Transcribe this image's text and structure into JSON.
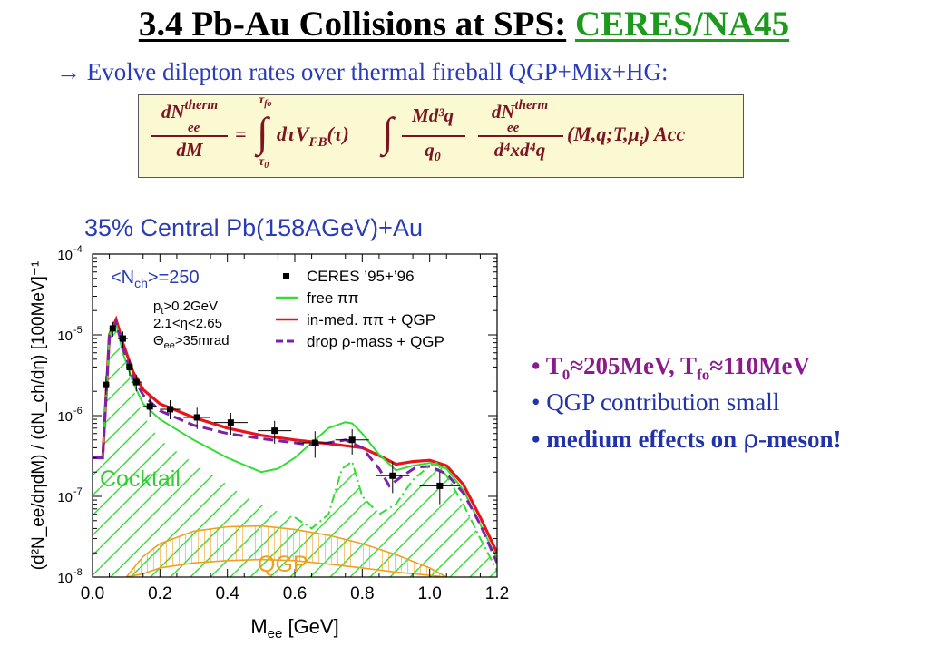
{
  "slide": {
    "title_prefix": "3.4  Pb-Au Collisions at SPS:",
    "title_accent": "CERES/NA45",
    "subtitle": "→ Evolve dilepton rates over thermal fireball QGP+Mix+HG:",
    "colors": {
      "title_accent": "#1d9a1d",
      "subtitle": "#2a3bb7",
      "equation": "#7c1420",
      "equation_bg": "#fbf9d2",
      "bullet_purple": "#8b1a8b",
      "bullet_blue": "#2233aa"
    }
  },
  "equation": {
    "lhs_num": "dN",
    "lhs_num_sup": "therm",
    "lhs_num_sub": "ee",
    "lhs_den": "dM",
    "equals": "=",
    "integral": "∫",
    "upper_limit": "τ",
    "upper_limit_sub": "fo",
    "lower_limit": "τ",
    "lower_limit_sub": "0",
    "term1": "dτV",
    "term1_sub": "FB",
    "term1_arg": "(τ)",
    "frac2_num": "Md³q",
    "frac2_den": "q",
    "frac2_den_sub": "0",
    "frac3_num": "dN",
    "frac3_num_sup": "therm",
    "frac3_num_sub": "ee",
    "frac3_den": "d⁴xd⁴q",
    "args": "(M,q;T,μ",
    "args_sub": "i",
    "args_end": ") Acc"
  },
  "bullets": [
    {
      "text_1": "T",
      "sub_1": "0",
      "text_2": "≈205MeV, T",
      "sub_2": "fo",
      "text_3": "≈110MeV"
    },
    {
      "text": "QGP contribution small"
    },
    {
      "text_1": "medium effects on ",
      "rho": "ρ",
      "text_2": "-meson!"
    }
  ],
  "chart_data": {
    "type": "line",
    "title": "35% Central Pb(158AGeV)+Au",
    "xlabel": "M",
    "xlabel_sub": "ee",
    "xlabel_unit": " [GeV]",
    "ylabel": "(d²N_ee/dηdM) / (dN_ch/dη)  [100MeV]⁻¹",
    "xlim": [
      0.0,
      1.2
    ],
    "ylim_log10": [
      -8,
      -4
    ],
    "y_scale": "log",
    "x_ticks": [
      "0.0",
      "0.2",
      "0.4",
      "0.6",
      "0.8",
      "1.0",
      "1.2"
    ],
    "y_ticks": [
      {
        "mant": "10",
        "exp": "-4"
      },
      {
        "mant": "10",
        "exp": "-5"
      },
      {
        "mant": "10",
        "exp": "-6"
      },
      {
        "mant": "10",
        "exp": "-7"
      },
      {
        "mant": "10",
        "exp": "-8"
      }
    ],
    "annotations": {
      "nch": "<N",
      "nch_sub": "ch",
      "nch_val": ">=250",
      "pt": "p",
      "pt_sub": "t",
      "pt_val": ">0.2GeV",
      "eta": "2.1<η<2.65",
      "theta": "Θ",
      "theta_sub": "ee",
      "theta_val": ">35mrad",
      "cocktail": "Cocktail",
      "qgp": "QGP"
    },
    "legend_position": "top-right",
    "legend": [
      {
        "label": "CERES  ’95+’96",
        "marker": "square",
        "color": "#000000"
      },
      {
        "label": "free ππ",
        "color": "#33dd33",
        "style": "solid"
      },
      {
        "label": "in-med. ππ + QGP",
        "color": "#e8141b",
        "style": "solid"
      },
      {
        "label": "drop ρ-mass + QGP",
        "color": "#7a22aa",
        "style": "dashed"
      }
    ],
    "data_points": {
      "x": [
        0.04,
        0.06,
        0.09,
        0.11,
        0.13,
        0.17,
        0.23,
        0.31,
        0.41,
        0.54,
        0.66,
        0.77,
        0.89,
        1.03
      ],
      "y": [
        2.4e-06,
        1.2e-05,
        9e-06,
        4e-06,
        2.6e-06,
        1.3e-06,
        1.2e-06,
        9.5e-07,
        8.2e-07,
        6.5e-07,
        4.6e-07,
        5e-07,
        1.8e-07,
        1.35e-07
      ],
      "xerr": [
        0.01,
        0.01,
        0.015,
        0.01,
        0.015,
        0.02,
        0.03,
        0.04,
        0.05,
        0.05,
        0.05,
        0.05,
        0.05,
        0.06
      ],
      "ylo": [
        1.8e-06,
        9.5e-06,
        7e-06,
        3.1e-06,
        2e-06,
        9.5e-07,
        9e-07,
        6.8e-07,
        5.8e-07,
        4.5e-07,
        3e-07,
        3.3e-07,
        1.1e-07,
        8e-08
      ],
      "yhi": [
        3.1e-06,
        1.45e-05,
        1.1e-05,
        4.9e-06,
        3.2e-06,
        1.7e-06,
        1.55e-06,
        1.25e-06,
        1.08e-06,
        8.6e-07,
        6.4e-07,
        6.8e-07,
        2.7e-07,
        2e-07
      ]
    },
    "series": [
      {
        "name": "in-med. ππ + QGP",
        "color": "#e8141b",
        "style": "solid",
        "x": [
          0.0,
          0.03,
          0.05,
          0.07,
          0.09,
          0.12,
          0.15,
          0.2,
          0.3,
          0.4,
          0.5,
          0.6,
          0.7,
          0.8,
          0.85,
          0.9,
          0.95,
          1.0,
          1.05,
          1.1,
          1.15,
          1.2
        ],
        "y": [
          3e-07,
          3e-07,
          1e-05,
          1.55e-05,
          8e-06,
          3.5e-06,
          2.1e-06,
          1.4e-06,
          9.5e-07,
          7e-07,
          5.7e-07,
          5e-07,
          4.5e-07,
          4e-07,
          3.2e-07,
          2.5e-07,
          2.7e-07,
          2.8e-07,
          2.4e-07,
          1.4e-07,
          5.5e-08,
          2e-08
        ]
      },
      {
        "name": "free ππ",
        "color": "#33dd33",
        "style": "solid",
        "x": [
          0.0,
          0.03,
          0.05,
          0.07,
          0.09,
          0.12,
          0.15,
          0.2,
          0.3,
          0.4,
          0.5,
          0.55,
          0.6,
          0.65,
          0.7,
          0.75,
          0.77,
          0.8,
          0.85,
          0.9,
          0.95,
          1.0,
          1.05,
          1.1,
          1.15,
          1.2
        ],
        "y": [
          3e-07,
          3e-07,
          1e-05,
          1.4e-05,
          6e-06,
          2.6e-06,
          1.4e-06,
          9e-07,
          5e-07,
          3e-07,
          2e-07,
          2.2e-07,
          3e-07,
          4.6e-07,
          7e-07,
          8.3e-07,
          8e-07,
          6e-07,
          3.3e-07,
          2.1e-07,
          2.4e-07,
          2.6e-07,
          2.2e-07,
          1.2e-07,
          4.5e-08,
          1.7e-08
        ]
      },
      {
        "name": "drop ρ-mass + QGP",
        "color": "#7a22aa",
        "style": "dashed",
        "x": [
          0.0,
          0.03,
          0.05,
          0.07,
          0.09,
          0.12,
          0.15,
          0.2,
          0.3,
          0.4,
          0.5,
          0.6,
          0.65,
          0.7,
          0.75,
          0.8,
          0.85,
          0.88,
          0.92,
          0.96,
          1.0,
          1.05,
          1.1,
          1.15,
          1.2
        ],
        "y": [
          3e-07,
          3e-07,
          9.5e-06,
          1.4e-05,
          7e-06,
          3e-06,
          1.8e-06,
          1.15e-06,
          7.6e-07,
          6e-07,
          5.2e-07,
          4.6e-07,
          4.3e-07,
          4.6e-07,
          5e-07,
          4e-07,
          2.2e-07,
          1.35e-07,
          1.8e-07,
          2.3e-07,
          2.35e-07,
          1.9e-07,
          1.1e-07,
          4.5e-08,
          1.5e-08
        ]
      },
      {
        "name": "cocktail",
        "color": "#33dd33",
        "style": "dashdot",
        "x": [
          0.6,
          0.65,
          0.7,
          0.74,
          0.77,
          0.8,
          0.85,
          0.9,
          0.95,
          1.0,
          1.02,
          1.05,
          1.1,
          1.15,
          1.2
        ],
        "y": [
          5.5e-08,
          4e-08,
          6e-08,
          2.2e-07,
          2.7e-07,
          1e-07,
          6e-08,
          8e-08,
          1.6e-07,
          2.4e-07,
          2.6e-07,
          1.8e-07,
          8e-08,
          3e-08,
          1.2e-08
        ]
      }
    ],
    "cocktail_area": {
      "x": [
        0.0,
        0.03,
        0.05,
        0.07,
        0.09,
        0.12,
        0.15,
        0.2,
        0.25,
        0.3,
        0.35,
        0.4,
        0.45,
        0.5,
        0.55,
        0.6,
        0.65,
        0.7,
        0.74,
        0.77,
        0.8,
        0.85,
        0.9,
        0.95,
        1.0,
        1.02,
        1.05,
        1.1,
        1.15,
        1.2
      ],
      "y": [
        3e-07,
        3e-07,
        9e-06,
        1.25e-05,
        5.5e-06,
        2.2e-06,
        1e-06,
        5e-07,
        3.6e-07,
        2.6e-07,
        1.9e-07,
        1.4e-07,
        1e-07,
        8e-08,
        6.5e-08,
        5.5e-08,
        4e-08,
        6e-08,
        2.2e-07,
        2.7e-07,
        1e-07,
        6e-08,
        8e-08,
        1.6e-07,
        2.4e-07,
        2.6e-07,
        1.8e-07,
        8e-08,
        3e-08,
        1.2e-08
      ]
    },
    "qgp_band": {
      "x": [
        0.1,
        0.15,
        0.2,
        0.3,
        0.4,
        0.5,
        0.6,
        0.7,
        0.8,
        0.9,
        1.0,
        1.05
      ],
      "upper": [
        1e-08,
        1.8e-08,
        2.6e-08,
        3.7e-08,
        4.2e-08,
        4.3e-08,
        3.9e-08,
        3.3e-08,
        2.6e-08,
        1.9e-08,
        1.3e-08,
        1e-08
      ],
      "lower": [
        1e-08,
        1.1e-08,
        1.3e-08,
        1.5e-08,
        1.6e-08,
        1.65e-08,
        1.6e-08,
        1.45e-08,
        1.3e-08,
        1.15e-08,
        1.05e-08,
        1e-08
      ],
      "color": "#f0a020"
    }
  }
}
